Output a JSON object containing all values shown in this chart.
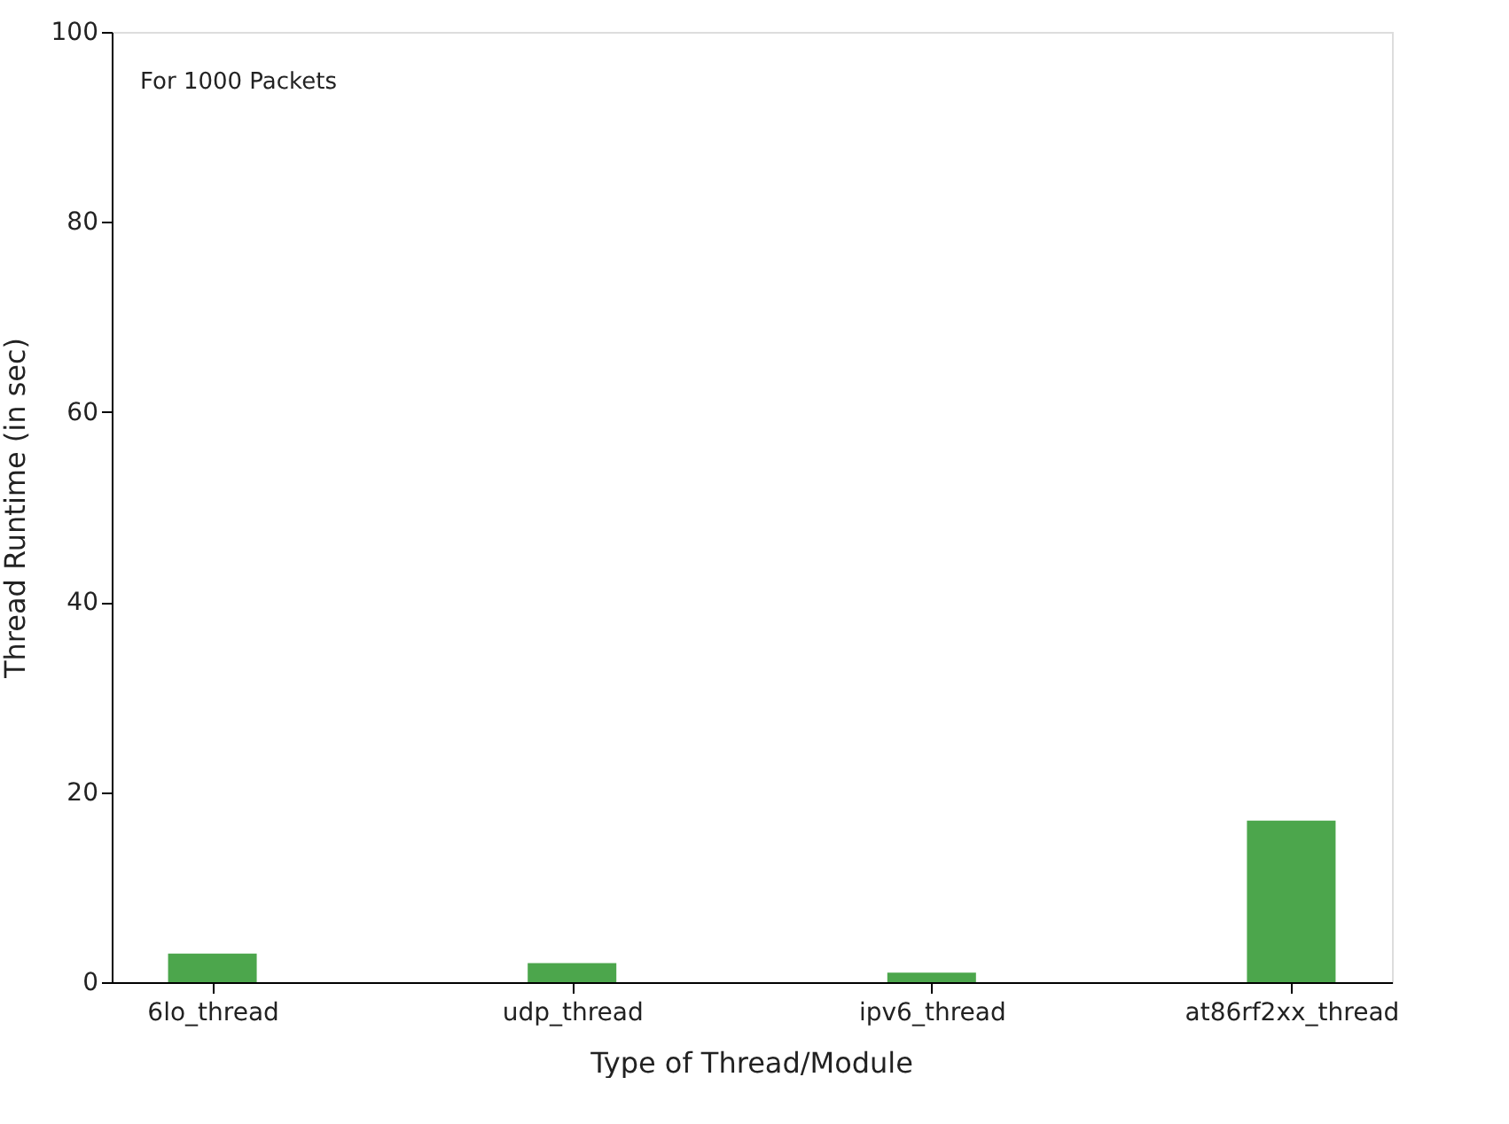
{
  "chart_data": {
    "type": "bar",
    "xlabel": "Type of Thread/Module",
    "ylabel": "Thread Runtime (in sec)",
    "categories": [
      "6lo_thread",
      "udp_thread",
      "ipv6_thread",
      "at86rf2xx_thread"
    ],
    "values": [
      3,
      2,
      1,
      17
    ],
    "color": "#4ca64c",
    "ylim": [
      0,
      100
    ],
    "yticks": [
      0,
      20,
      40,
      60,
      80,
      100
    ],
    "grid": false,
    "annotations": [
      "For 1000 Packets"
    ]
  }
}
